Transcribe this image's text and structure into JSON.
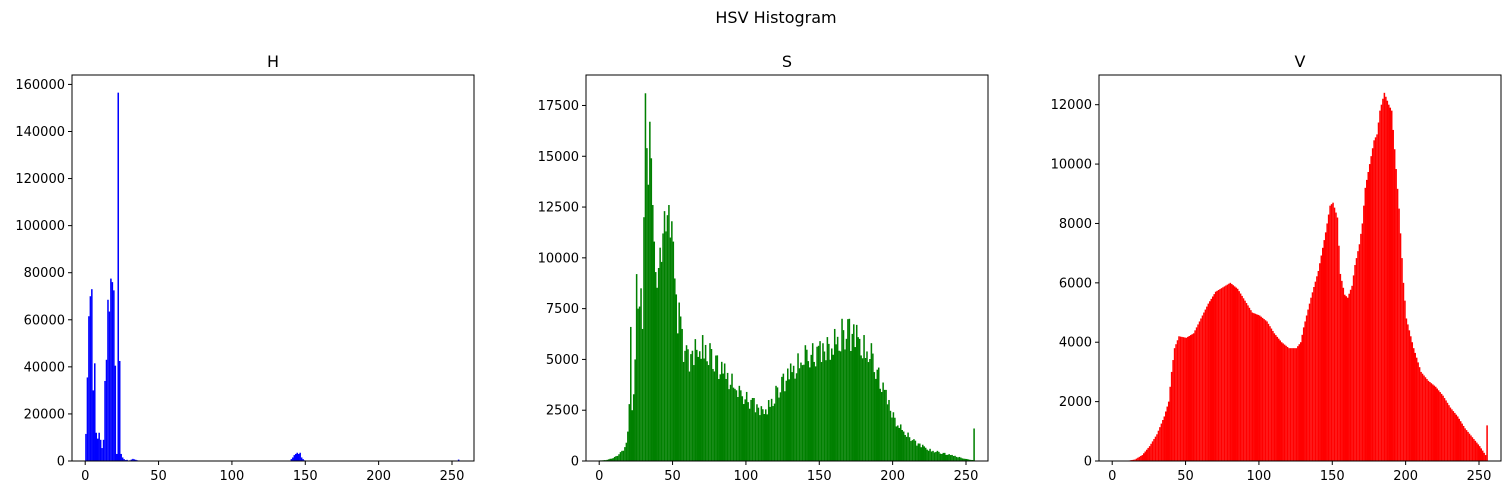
{
  "figure": {
    "title": "HSV Histogram"
  },
  "chart_data": [
    {
      "type": "bar",
      "title": "H",
      "color": "#0000ff",
      "xlim": [
        -9,
        265
      ],
      "ylim": [
        0,
        164000
      ],
      "xticks": [
        0,
        50,
        100,
        150,
        200,
        250
      ],
      "yticks": [
        0,
        20000,
        40000,
        60000,
        80000,
        100000,
        120000,
        140000,
        160000
      ],
      "bins": [
        [
          0,
          11500
        ],
        [
          1,
          35500
        ],
        [
          2,
          61500
        ],
        [
          3,
          70000
        ],
        [
          4,
          73000
        ],
        [
          5,
          30000
        ],
        [
          6,
          41500
        ],
        [
          7,
          12000
        ],
        [
          8,
          9500
        ],
        [
          9,
          12000
        ],
        [
          10,
          9000
        ],
        [
          11,
          5500
        ],
        [
          12,
          9000
        ],
        [
          13,
          34000
        ],
        [
          14,
          43000
        ],
        [
          15,
          68500
        ],
        [
          16,
          63500
        ],
        [
          17,
          77500
        ],
        [
          18,
          76000
        ],
        [
          19,
          72500
        ],
        [
          20,
          40500
        ],
        [
          21,
          3000
        ],
        [
          22,
          156500
        ],
        [
          23,
          42500
        ],
        [
          24,
          3000
        ],
        [
          25,
          1500
        ],
        [
          26,
          800
        ],
        [
          27,
          400
        ],
        [
          28,
          500
        ],
        [
          29,
          200
        ],
        [
          30,
          300
        ],
        [
          31,
          600
        ],
        [
          32,
          900
        ],
        [
          33,
          700
        ],
        [
          34,
          500
        ],
        [
          35,
          300
        ],
        [
          36,
          200
        ],
        [
          140,
          800
        ],
        [
          141,
          1500
        ],
        [
          142,
          2500
        ],
        [
          143,
          3000
        ],
        [
          144,
          3500
        ],
        [
          145,
          3000
        ],
        [
          146,
          3500
        ],
        [
          147,
          1500
        ],
        [
          148,
          800
        ],
        [
          149,
          300
        ],
        [
          254,
          600
        ]
      ]
    },
    {
      "type": "bar",
      "title": "S",
      "color": "#008000",
      "xlim": [
        -9,
        265
      ],
      "ylim": [
        0,
        19000
      ],
      "xticks": [
        0,
        50,
        100,
        150,
        200,
        250
      ],
      "yticks": [
        0,
        2500,
        5000,
        7500,
        10000,
        12500,
        15000,
        17500
      ],
      "peaks": [
        [
          0,
          30
        ],
        [
          5,
          60
        ],
        [
          10,
          200
        ],
        [
          15,
          500
        ],
        [
          18,
          900
        ],
        [
          20,
          2800
        ],
        [
          21,
          6600
        ],
        [
          22,
          2500
        ],
        [
          24,
          5000
        ],
        [
          25,
          9200
        ],
        [
          26,
          7500
        ],
        [
          28,
          8500
        ],
        [
          29,
          6500
        ],
        [
          30,
          12000
        ],
        [
          31,
          18100
        ],
        [
          32,
          15400
        ],
        [
          33,
          13600
        ],
        [
          34,
          16700
        ],
        [
          35,
          14900
        ],
        [
          36,
          12600
        ],
        [
          37,
          10800
        ],
        [
          38,
          9300
        ],
        [
          40,
          9500
        ],
        [
          41,
          10500
        ],
        [
          42,
          9800
        ],
        [
          43,
          11200
        ],
        [
          44,
          12300
        ],
        [
          45,
          11300
        ],
        [
          46,
          12100
        ],
        [
          47,
          12600
        ],
        [
          48,
          11000
        ],
        [
          49,
          11800
        ],
        [
          50,
          10800
        ],
        [
          52,
          8200
        ],
        [
          54,
          7800
        ],
        [
          56,
          6500
        ],
        [
          60,
          5500
        ],
        [
          65,
          6000
        ],
        [
          70,
          6200
        ],
        [
          75,
          5800
        ],
        [
          80,
          5200
        ],
        [
          85,
          4800
        ],
        [
          90,
          4300
        ],
        [
          95,
          3700
        ],
        [
          100,
          3400
        ],
        [
          105,
          3100
        ],
        [
          110,
          2700
        ],
        [
          115,
          3000
        ],
        [
          120,
          3700
        ],
        [
          125,
          4300
        ],
        [
          130,
          4800
        ],
        [
          135,
          5300
        ],
        [
          140,
          5700
        ],
        [
          145,
          5800
        ],
        [
          150,
          5900
        ],
        [
          155,
          6100
        ],
        [
          160,
          6500
        ],
        [
          165,
          7000
        ],
        [
          170,
          7000
        ],
        [
          175,
          6700
        ],
        [
          180,
          6200
        ],
        [
          185,
          5800
        ],
        [
          190,
          4600
        ],
        [
          195,
          3500
        ],
        [
          200,
          2400
        ],
        [
          205,
          1800
        ],
        [
          210,
          1400
        ],
        [
          215,
          1000
        ],
        [
          220,
          800
        ],
        [
          225,
          600
        ],
        [
          230,
          500
        ],
        [
          235,
          400
        ],
        [
          240,
          300
        ],
        [
          245,
          200
        ],
        [
          250,
          100
        ],
        [
          254,
          50
        ],
        [
          255,
          1600
        ]
      ]
    },
    {
      "type": "bar",
      "title": "V",
      "color": "#ff0000",
      "xlim": [
        -9,
        265
      ],
      "ylim": [
        0,
        13000
      ],
      "xticks": [
        0,
        50,
        100,
        150,
        200,
        250
      ],
      "yticks": [
        0,
        2000,
        4000,
        6000,
        8000,
        10000,
        12000
      ],
      "curve": [
        [
          0,
          0
        ],
        [
          10,
          10
        ],
        [
          15,
          50
        ],
        [
          20,
          200
        ],
        [
          25,
          500
        ],
        [
          30,
          900
        ],
        [
          35,
          1500
        ],
        [
          38,
          2000
        ],
        [
          40,
          3000
        ],
        [
          42,
          3800
        ],
        [
          45,
          4200
        ],
        [
          50,
          4150
        ],
        [
          55,
          4300
        ],
        [
          60,
          4800
        ],
        [
          65,
          5300
        ],
        [
          70,
          5700
        ],
        [
          75,
          5850
        ],
        [
          80,
          6000
        ],
        [
          85,
          5800
        ],
        [
          90,
          5400
        ],
        [
          95,
          5000
        ],
        [
          100,
          4900
        ],
        [
          105,
          4700
        ],
        [
          110,
          4300
        ],
        [
          115,
          4000
        ],
        [
          120,
          3800
        ],
        [
          125,
          3800
        ],
        [
          128,
          4000
        ],
        [
          130,
          4500
        ],
        [
          135,
          5500
        ],
        [
          140,
          6400
        ],
        [
          145,
          7700
        ],
        [
          148,
          8600
        ],
        [
          150,
          8700
        ],
        [
          153,
          8200
        ],
        [
          155,
          6300
        ],
        [
          158,
          5600
        ],
        [
          160,
          5500
        ],
        [
          163,
          5900
        ],
        [
          165,
          6600
        ],
        [
          168,
          7300
        ],
        [
          170,
          8000
        ],
        [
          172,
          9200
        ],
        [
          175,
          10000
        ],
        [
          178,
          10800
        ],
        [
          180,
          11000
        ],
        [
          182,
          11800
        ],
        [
          185,
          12400
        ],
        [
          188,
          12000
        ],
        [
          190,
          11800
        ],
        [
          192,
          10500
        ],
        [
          195,
          8500
        ],
        [
          198,
          6000
        ],
        [
          200,
          4800
        ],
        [
          205,
          3800
        ],
        [
          210,
          3000
        ],
        [
          215,
          2700
        ],
        [
          220,
          2500
        ],
        [
          225,
          2200
        ],
        [
          230,
          1800
        ],
        [
          235,
          1500
        ],
        [
          240,
          1100
        ],
        [
          245,
          800
        ],
        [
          250,
          500
        ],
        [
          254,
          200
        ],
        [
          255,
          1200
        ]
      ]
    }
  ]
}
